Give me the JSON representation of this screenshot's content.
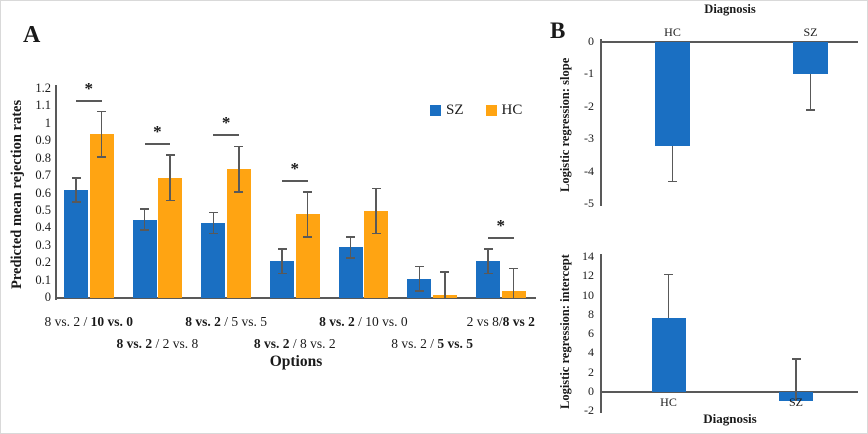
{
  "figure": {
    "panelA": {
      "label": "A"
    },
    "panelB": {
      "label": "B"
    }
  },
  "legend": {
    "items": [
      {
        "name": "SZ",
        "color": "#1a6fc2"
      },
      {
        "name": "HC",
        "color": "#ffa412"
      }
    ]
  },
  "colors": {
    "bar_blue": "#1a6fc2",
    "bar_orange": "#ffa412",
    "error_bar": "#595959",
    "axis": "#595959",
    "text": "#1a1a1a"
  },
  "chart_data": [
    {
      "id": "panelA-rejection-rates",
      "type": "bar",
      "title": "",
      "xlabel": "Options",
      "ylabel": "Predicted mean rejection rates",
      "ylim": [
        0,
        1.2
      ],
      "yticks": [
        0,
        0.1,
        0.2,
        0.3,
        0.4,
        0.5,
        0.6,
        0.7,
        0.8,
        0.9,
        1,
        1.1,
        1.2
      ],
      "grid": false,
      "legend_position": "top-right",
      "categories": [
        "8 vs. 2 / 10 vs. 0",
        "8 vs. 2 / 2 vs. 8",
        "8 vs. 2 / 5 vs. 5",
        "8 vs. 2 / 8 vs. 2",
        "8 vs. 2 / 10 vs. 0",
        "8 vs. 2 / 5 vs. 5",
        "2 vs 8/8 vs 2"
      ],
      "categories_rich": [
        [
          {
            "t": "8 vs. 2 / ",
            "b": false
          },
          {
            "t": "10 vs. 0",
            "b": true
          }
        ],
        [
          {
            "t": "8 vs. 2",
            "b": true
          },
          {
            "t": " / 2 vs. 8",
            "b": false
          }
        ],
        [
          {
            "t": "8 vs. 2",
            "b": true
          },
          {
            "t": " / 5 vs. 5",
            "b": false
          }
        ],
        [
          {
            "t": "8 vs. 2",
            "b": true
          },
          {
            "t": " / 8 vs. 2",
            "b": false
          }
        ],
        [
          {
            "t": "8 vs. 2",
            "b": true
          },
          {
            "t": " / 10 vs. 0",
            "b": false
          }
        ],
        [
          {
            "t": "8 vs. 2 / ",
            "b": false
          },
          {
            "t": "5 vs. 5",
            "b": true
          }
        ],
        [
          {
            "t": "2 vs 8/",
            "b": false
          },
          {
            "t": "8 vs 2",
            "b": true
          }
        ]
      ],
      "series": [
        {
          "name": "SZ",
          "color": "#1a6fc2",
          "values": [
            0.62,
            0.45,
            0.43,
            0.21,
            0.29,
            0.11,
            0.21
          ],
          "errors": [
            0.07,
            0.06,
            0.06,
            0.07,
            0.06,
            0.07,
            0.07
          ]
        },
        {
          "name": "HC",
          "color": "#ffa412",
          "values": [
            0.94,
            0.69,
            0.74,
            0.48,
            0.5,
            0.02,
            0.04
          ],
          "errors": [
            0.13,
            0.13,
            0.13,
            0.13,
            0.13,
            0.13,
            0.13
          ]
        }
      ],
      "significant_groups": [
        1,
        2,
        3,
        4,
        7
      ],
      "significance_symbol": "*"
    },
    {
      "id": "panelB-slope",
      "type": "bar",
      "title": "Diagnosis",
      "xlabel": "",
      "ylabel": "Logistic regression: slope",
      "ylim": [
        -5,
        0
      ],
      "yticks": [
        0,
        -1,
        -2,
        -3,
        -4,
        -5
      ],
      "grid": false,
      "categories": [
        "HC",
        "SZ"
      ],
      "values": [
        -3.2,
        -1.0
      ],
      "errors": [
        1.1,
        1.1
      ],
      "error_direction": "down",
      "bar_color": "#1a6fc2",
      "category_label_position": "above-axis"
    },
    {
      "id": "panelB-intercept",
      "type": "bar",
      "title": "",
      "xlabel": "Diagnosis",
      "ylabel": "Logistic regression: intercept",
      "ylim": [
        -2,
        14
      ],
      "yticks": [
        14,
        12,
        10,
        8,
        6,
        4,
        2,
        0,
        -2
      ],
      "grid": false,
      "categories": [
        "HC",
        "SZ"
      ],
      "values": [
        7.7,
        -0.9
      ],
      "errors": [
        4.5,
        4.3
      ],
      "error_direction": "up",
      "bar_color": "#1a6fc2",
      "category_label_position": "below-axis"
    }
  ]
}
